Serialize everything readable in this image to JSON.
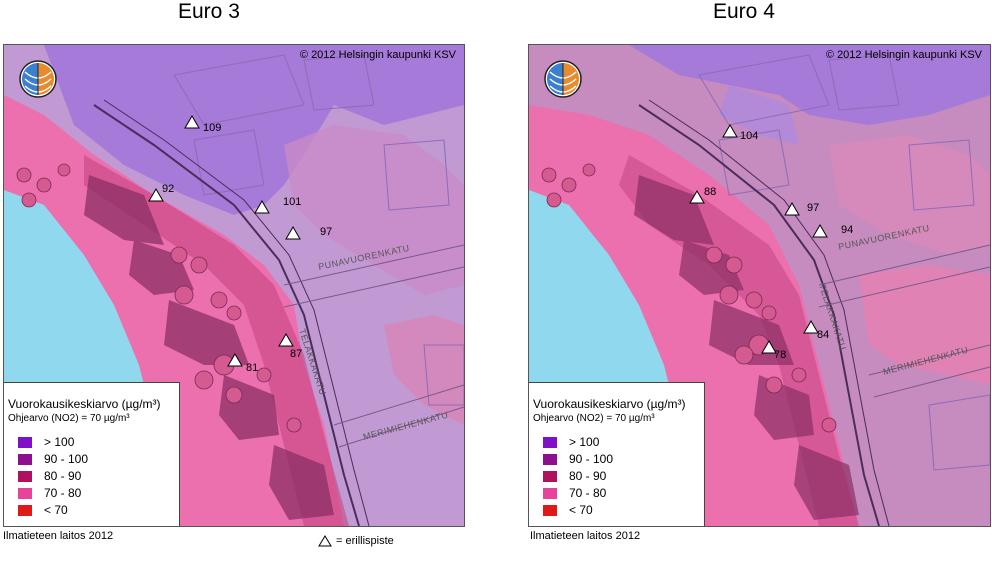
{
  "maps": [
    {
      "title": "Euro 3",
      "copyright": "© 2012 Helsingin kaupunki KSV",
      "source": "Ilmatieteen laitos 2012",
      "points": [
        {
          "label": "109"
        },
        {
          "label": "92"
        },
        {
          "label": "101"
        },
        {
          "label": "97"
        },
        {
          "label": "87"
        },
        {
          "label": "81"
        }
      ]
    },
    {
      "title": "Euro 4",
      "copyright": "© 2012 Helsingin kaupunki KSV",
      "source": "Ilmatieteen laitos  2012",
      "points": [
        {
          "label": "104"
        },
        {
          "label": "88"
        },
        {
          "label": "97"
        },
        {
          "label": "94"
        },
        {
          "label": "84"
        },
        {
          "label": "78"
        }
      ]
    }
  ],
  "streets": {
    "punavuorenkatu": "PUNAVUORENKATU",
    "telakkakatu": "TELAKKAKATU",
    "merimiehenkatu": "MERIMIEHENKATU"
  },
  "legend": {
    "title": "Vuorokausikeskiarvo (µg/m³)",
    "subtitle": "Ohjearvo (NO2) = 70 µg/m³",
    "items": [
      {
        "label": "> 100",
        "color": "#7f10c8"
      },
      {
        "label": "90 - 100",
        "color": "#8d0f8f"
      },
      {
        "label": "80 -   90",
        "color": "#b01060"
      },
      {
        "label": "70 -   80",
        "color": "#e8439a"
      },
      {
        "label": "< 70",
        "color": "#e01818"
      }
    ]
  },
  "key": {
    "erillispiste": "= erillispiste"
  },
  "colors": {
    "sea": "#8fd8ee",
    "zone_lt70": "#e01818",
    "zone_70_80": "#ec6fae",
    "zone_80_90": "#c2427e",
    "zone_90_100": "#b25a9e",
    "zone_gt100": "#a57ad8",
    "base": "#c7a8d8"
  }
}
